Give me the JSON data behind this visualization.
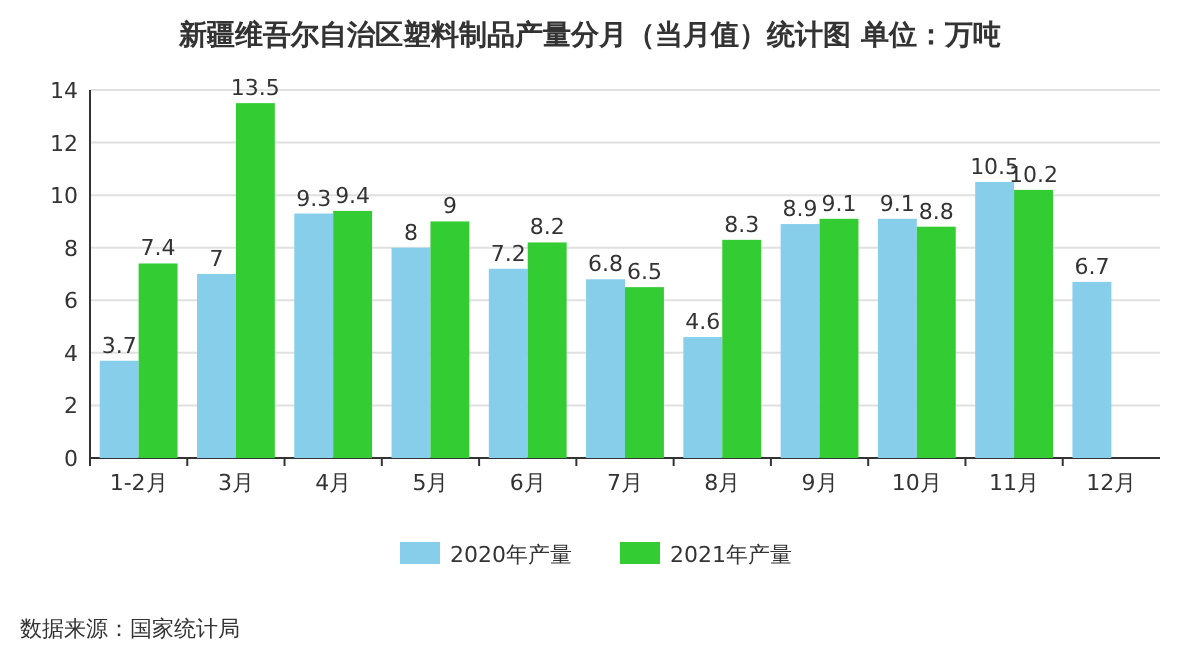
{
  "chart_data": {
    "type": "bar",
    "title": "新疆维吾尔自治区塑料制品产量分月（当月值）统计图 单位：万吨",
    "categories": [
      "1-2月",
      "3月",
      "4月",
      "5月",
      "6月",
      "7月",
      "8月",
      "9月",
      "10月",
      "11月",
      "12月"
    ],
    "series": [
      {
        "name": "2020年产量",
        "color": "#87ceeb",
        "values": [
          3.7,
          7,
          9.3,
          8,
          7.2,
          6.8,
          4.6,
          8.9,
          9.1,
          10.5,
          6.7
        ]
      },
      {
        "name": "2021年产量",
        "color": "#33cc33",
        "values": [
          7.4,
          13.5,
          9.4,
          9,
          8.2,
          6.5,
          8.3,
          9.1,
          8.8,
          10.2,
          null
        ]
      }
    ],
    "ylim": [
      0,
      14
    ],
    "yticks": [
      0,
      2,
      4,
      6,
      8,
      10,
      12,
      14
    ],
    "grid": "y",
    "legend": "bottom",
    "data_labels": true,
    "annotations": [
      "数据来源：国家统计局"
    ]
  }
}
